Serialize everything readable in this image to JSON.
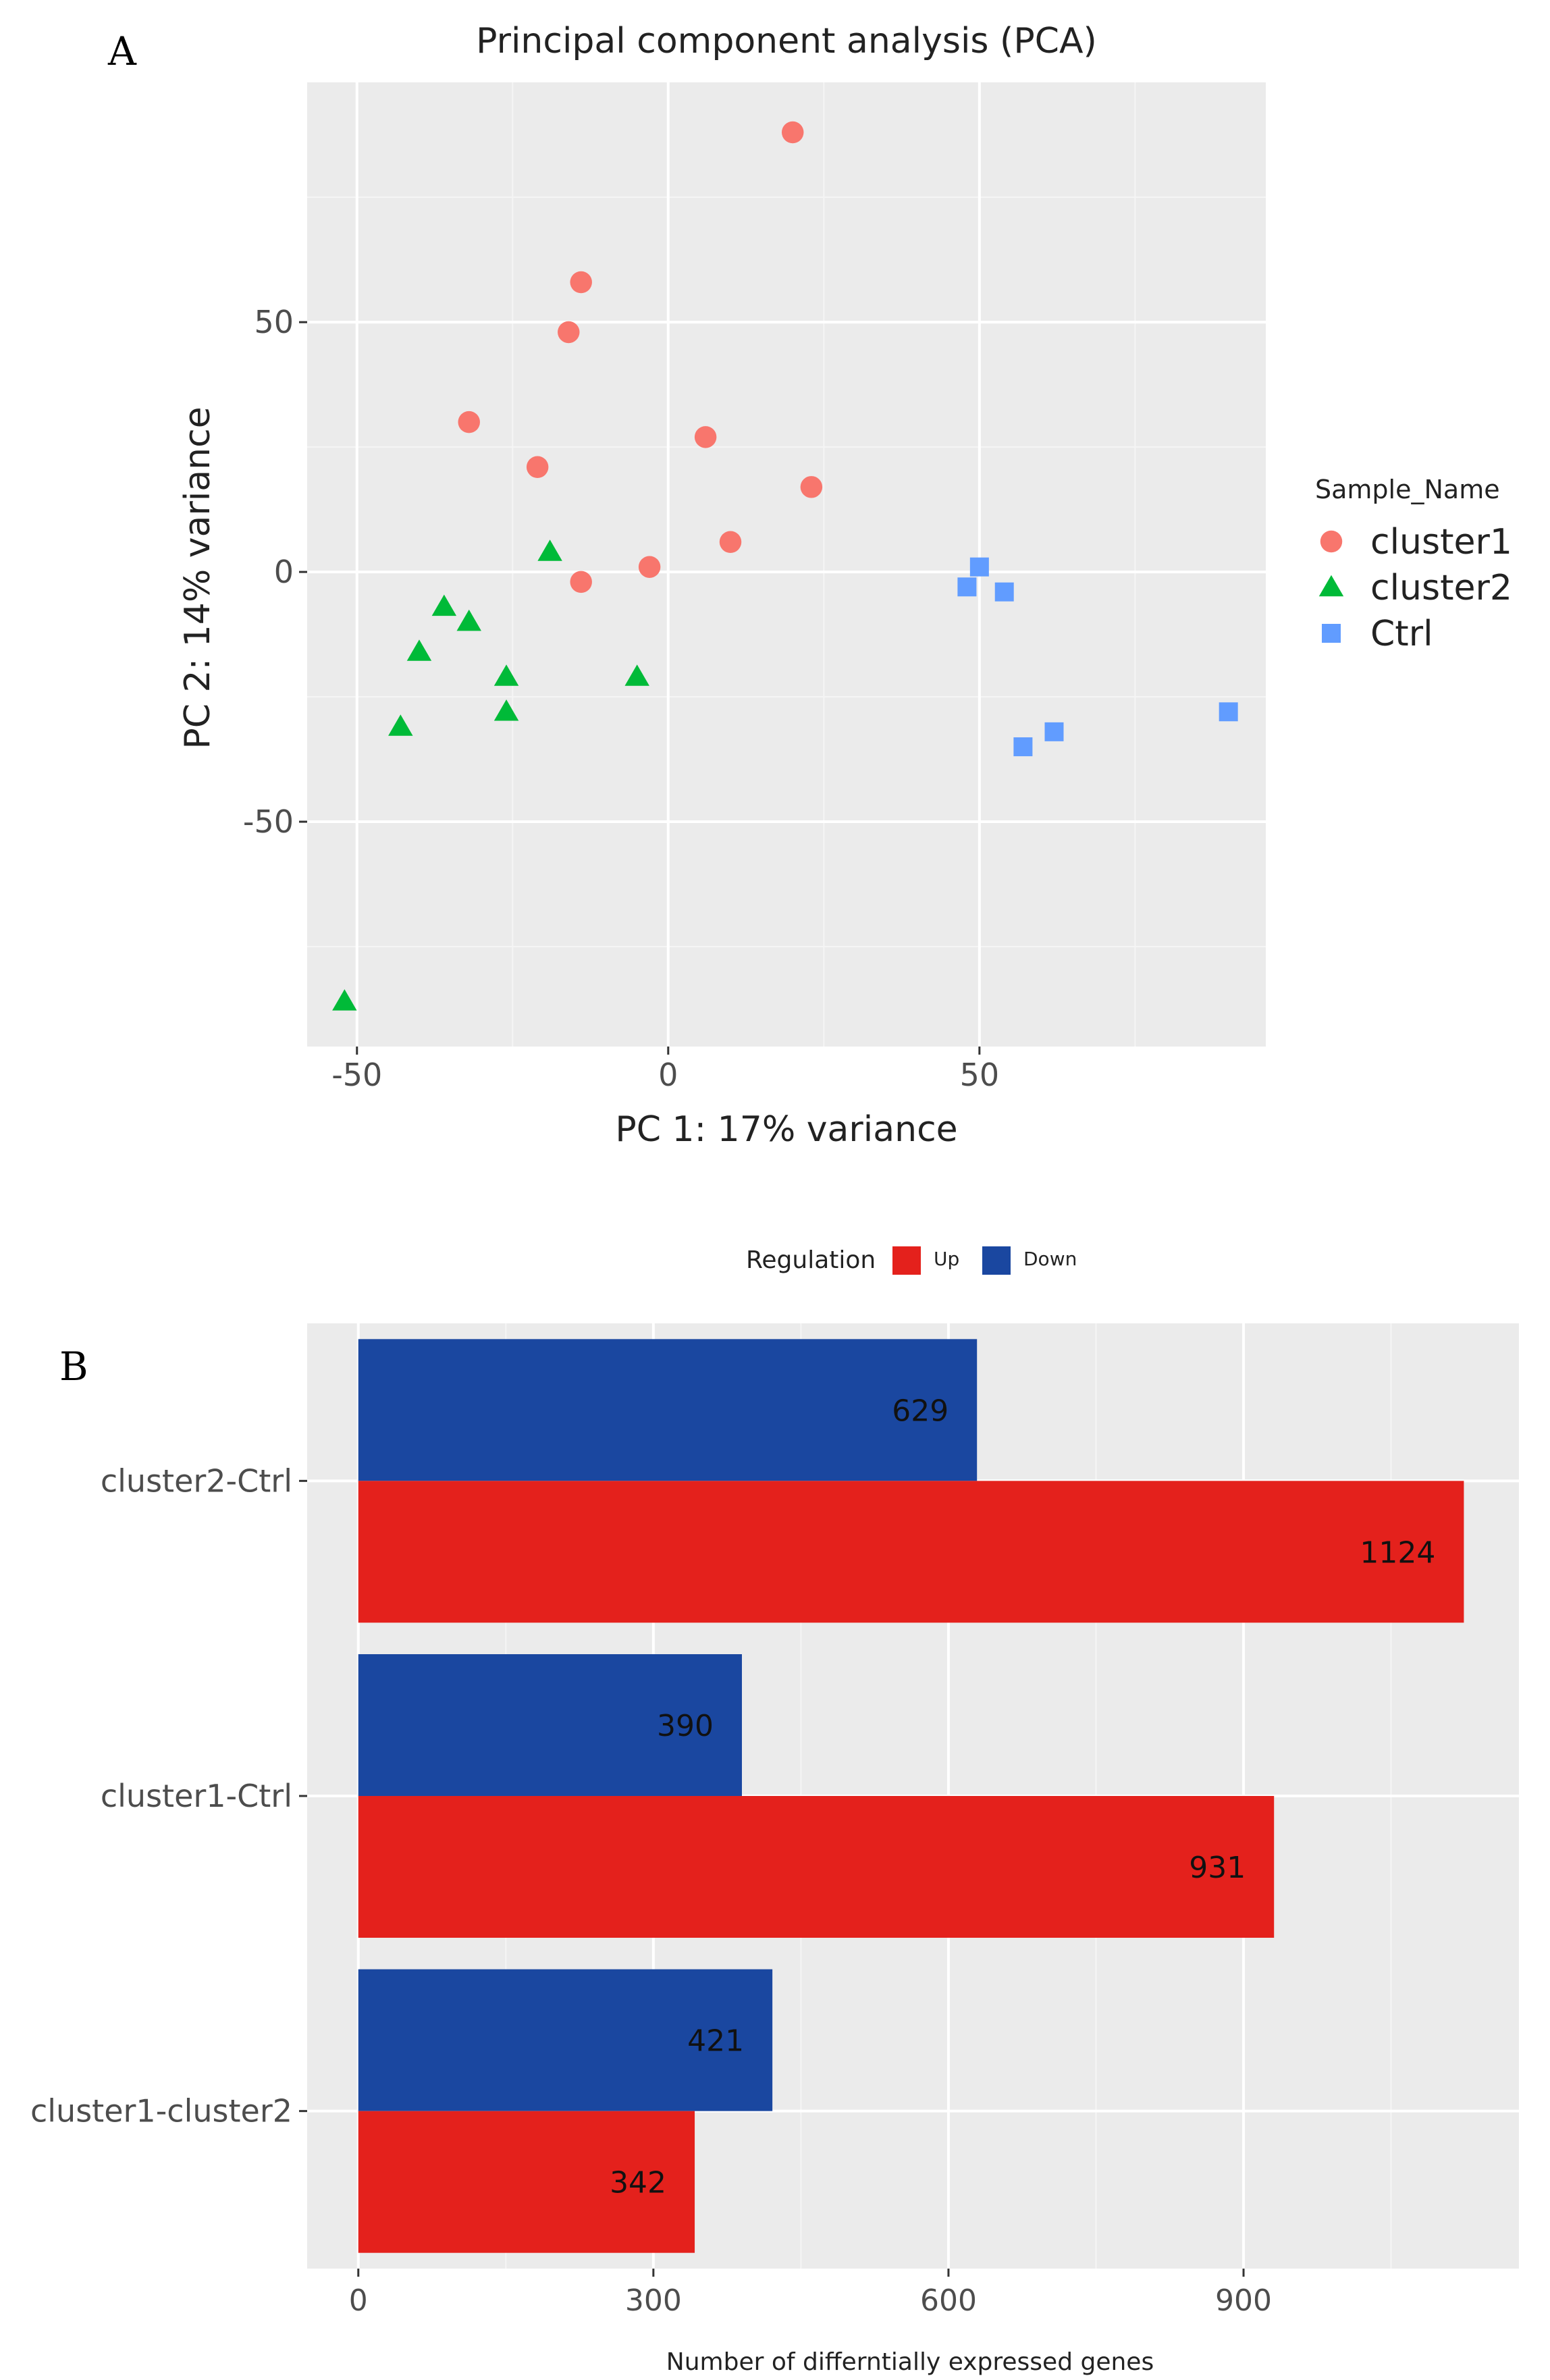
{
  "panels": {
    "a_letter": "A",
    "b_letter": "B"
  },
  "chart_data": [
    {
      "type": "scatter",
      "title": "Principal component analysis  (PCA)",
      "xlabel": "PC 1: 17% variance",
      "ylabel": "PC 2: 14%  variance",
      "xlim": [
        -58,
        96
      ],
      "ylim": [
        -95,
        98
      ],
      "xticks": [
        -50,
        0,
        50
      ],
      "yticks": [
        -50,
        0,
        50
      ],
      "grid": true,
      "legend_title": "Sample_Name",
      "legend_position": "right",
      "series": [
        {
          "name": "cluster1",
          "marker": "circle",
          "color": "#F8766D",
          "points": [
            [
              20,
              88
            ],
            [
              -14,
              58
            ],
            [
              -16,
              48
            ],
            [
              -32,
              30
            ],
            [
              -21,
              21
            ],
            [
              6,
              27
            ],
            [
              23,
              17
            ],
            [
              10,
              6
            ],
            [
              -3,
              1
            ],
            [
              -14,
              -2
            ]
          ]
        },
        {
          "name": "cluster2",
          "marker": "triangle",
          "color": "#00BA38",
          "points": [
            [
              -19,
              4
            ],
            [
              -36,
              -7
            ],
            [
              -32,
              -10
            ],
            [
              -40,
              -16
            ],
            [
              -26,
              -21
            ],
            [
              -26,
              -28
            ],
            [
              -43,
              -31
            ],
            [
              -5,
              -21
            ],
            [
              -52,
              -86
            ]
          ]
        },
        {
          "name": "Ctrl",
          "marker": "square",
          "color": "#619CFF",
          "points": [
            [
              50,
              1
            ],
            [
              48,
              -3
            ],
            [
              54,
              -4
            ],
            [
              57,
              -35
            ],
            [
              62,
              -32
            ],
            [
              90,
              -28
            ]
          ]
        }
      ]
    },
    {
      "type": "bar",
      "orientation": "horizontal",
      "legend_title": "Regulation",
      "legend_position": "top",
      "categories": [
        "cluster2-Ctrl",
        "cluster1-Ctrl",
        "cluster1-cluster2"
      ],
      "series": [
        {
          "name": "Down",
          "color": "#1A47A0",
          "values": [
            629,
            390,
            421
          ]
        },
        {
          "name": "Up",
          "color": "#E4211C",
          "values": [
            1124,
            931,
            342
          ]
        }
      ],
      "xlabel": "Number of differntially expressed genes",
      "xlim": [
        -52,
        1180
      ],
      "xticks": [
        0,
        300,
        600,
        900
      ],
      "grid": true
    }
  ]
}
